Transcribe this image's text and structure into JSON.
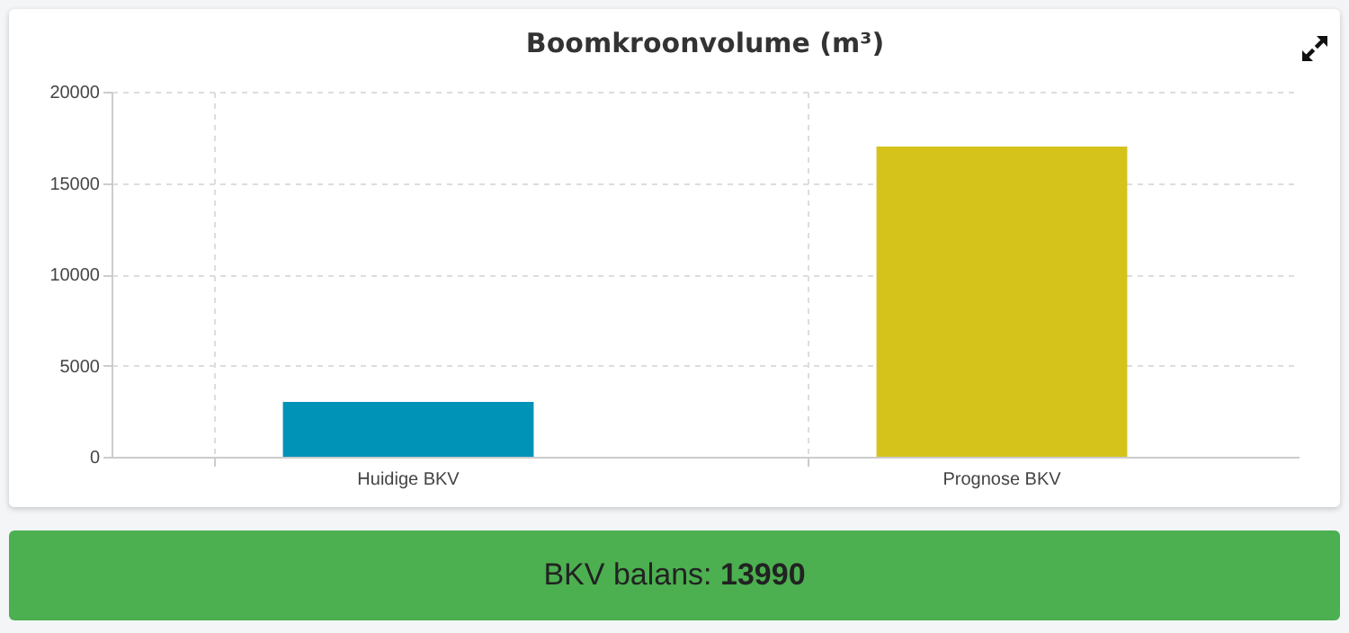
{
  "chart_data": {
    "type": "bar",
    "title": "Boomkroonvolume (m³)",
    "categories": [
      "Huidige BKV",
      "Prognose BKV"
    ],
    "values": [
      3000,
      17000
    ],
    "colors": [
      "#0093b8",
      "#d5c31c"
    ],
    "ylim": [
      0,
      20000
    ],
    "yticks": [
      0,
      5000,
      10000,
      15000,
      20000
    ],
    "grid": true,
    "annotations": [
      "BKV balans: 13990"
    ]
  }
}
